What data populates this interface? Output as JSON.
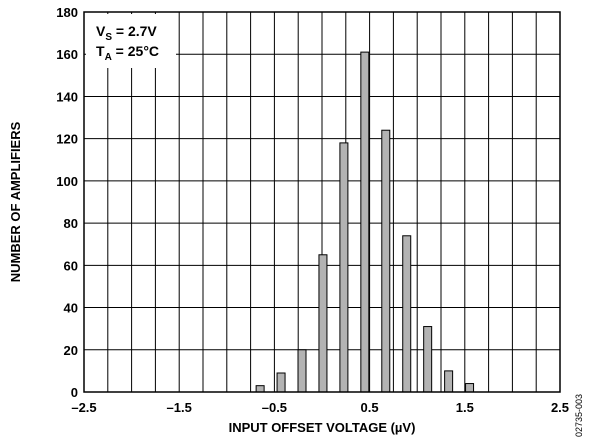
{
  "chart_data": {
    "type": "bar",
    "title": "",
    "xlabel": "INPUT OFFSET VOLTAGE (µV)",
    "ylabel": "NUMBER OF AMPLIFIERS",
    "xlim": [
      -2.5,
      2.5
    ],
    "ylim": [
      0,
      180
    ],
    "x_ticks": [
      -2.5,
      -2.0,
      -1.5,
      -1.0,
      -0.5,
      0,
      0.5,
      1.0,
      1.5,
      2.0,
      2.5
    ],
    "x_tick_labels": [
      "–2.5",
      "",
      "–1.5",
      "",
      "–0.5",
      "",
      "0.5",
      "",
      "1.5",
      "",
      "2.5"
    ],
    "y_ticks": [
      0,
      20,
      40,
      60,
      80,
      100,
      120,
      140,
      160,
      180
    ],
    "y_tick_labels": [
      "0",
      "20",
      "40",
      "60",
      "80",
      "100",
      "120",
      "140",
      "160",
      "180"
    ],
    "x_minor_step": 0.25,
    "grid": true,
    "bar_color": "#b3b3b3",
    "bar_edge_color": "#000000",
    "x": [
      -0.65,
      -0.43,
      -0.21,
      0.01,
      0.23,
      0.45,
      0.67,
      0.89,
      1.11,
      1.33,
      1.55,
      1.77
    ],
    "values": [
      3,
      9,
      20,
      65,
      118,
      161,
      124,
      74,
      31,
      10,
      4,
      0
    ],
    "annotation": {
      "line1_main": "V",
      "line1_sub": "S",
      "line1_rest": " = 2.7V",
      "line2_main": "T",
      "line2_sub": "A",
      "line2_rest": " = 25°C"
    },
    "figure_code": "02735-003"
  }
}
